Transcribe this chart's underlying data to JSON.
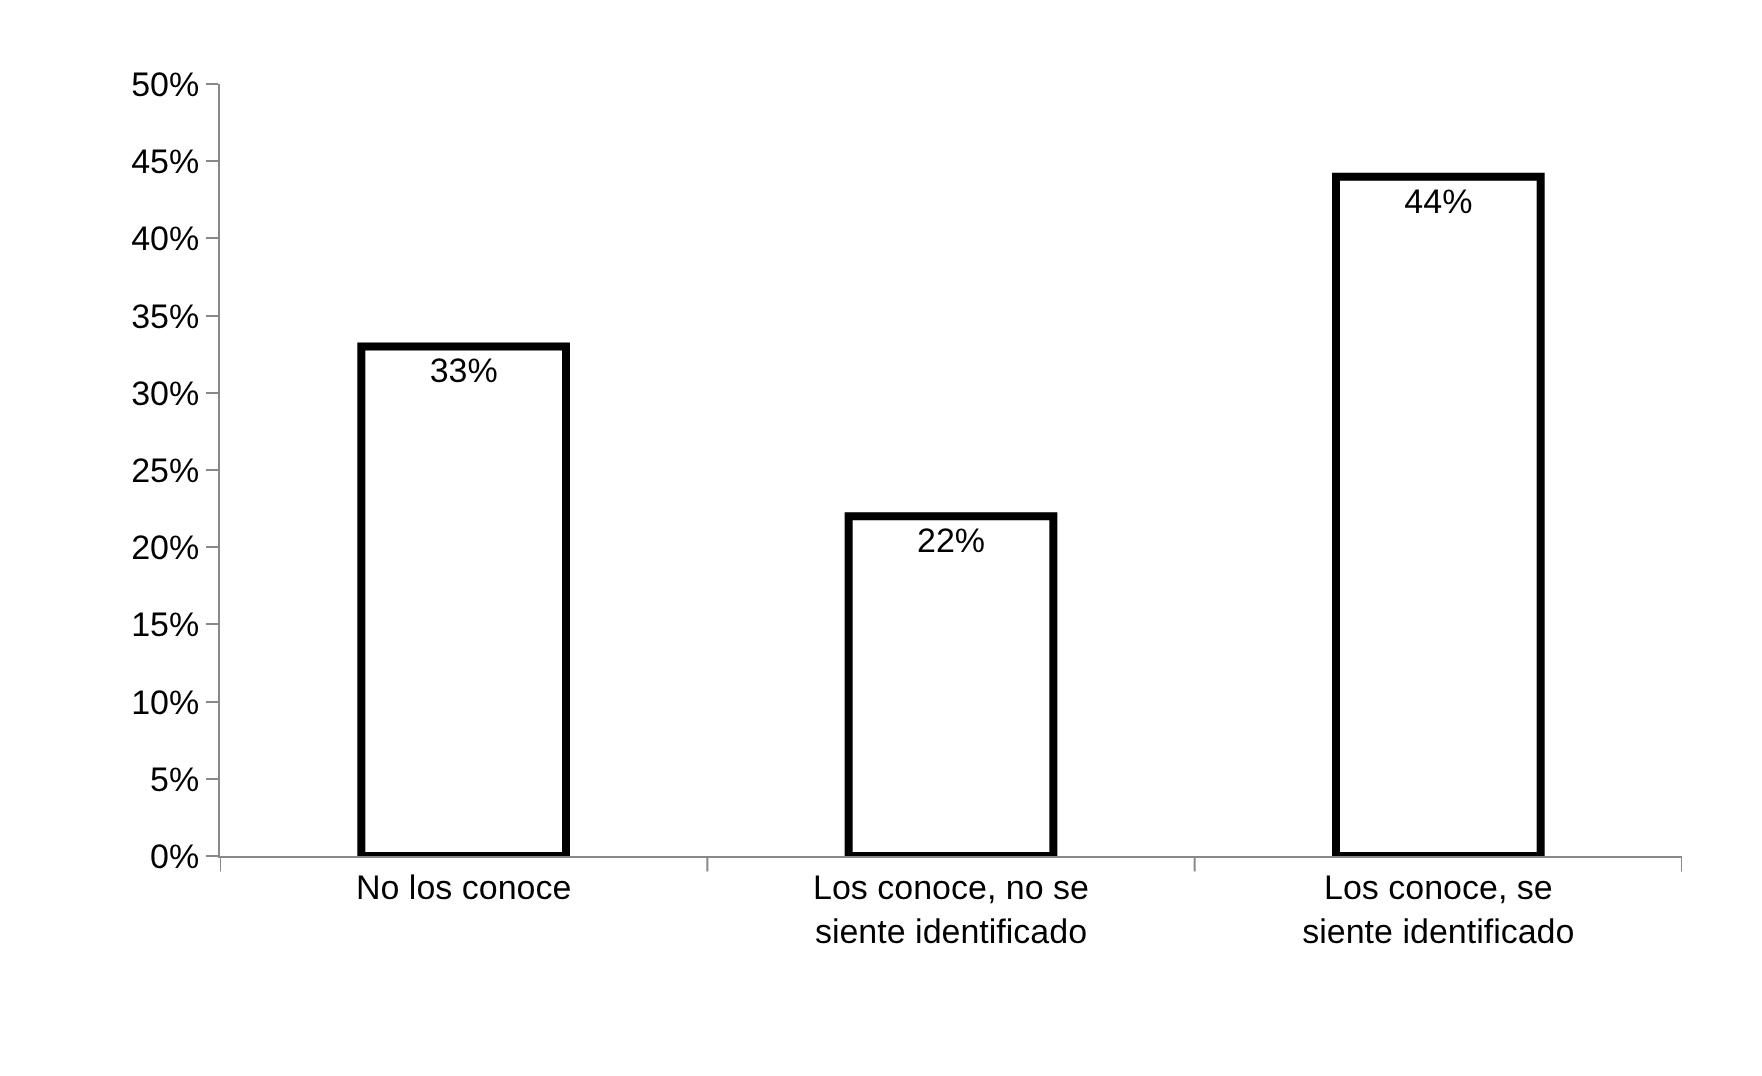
{
  "chart_data": {
    "type": "bar",
    "categories": [
      "No los conoce",
      "Los conoce, no se siente identificado",
      "Los conoce, se siente identificado"
    ],
    "values": [
      33,
      22,
      44
    ],
    "value_labels": [
      "33%",
      "22%",
      "44%"
    ],
    "color": "#ffffff",
    "ylim": [
      0,
      50
    ],
    "yticks": [
      {
        "value": 0,
        "label": "0%"
      },
      {
        "value": 5,
        "label": "5%"
      },
      {
        "value": 10,
        "label": "10%"
      },
      {
        "value": 15,
        "label": "15%"
      },
      {
        "value": 20,
        "label": "20%"
      },
      {
        "value": 25,
        "label": "25%"
      },
      {
        "value": 30,
        "label": "30%"
      },
      {
        "value": 35,
        "label": "35%"
      },
      {
        "value": 40,
        "label": "40%"
      },
      {
        "value": 45,
        "label": "45%"
      },
      {
        "value": 50,
        "label": "50%"
      }
    ]
  }
}
